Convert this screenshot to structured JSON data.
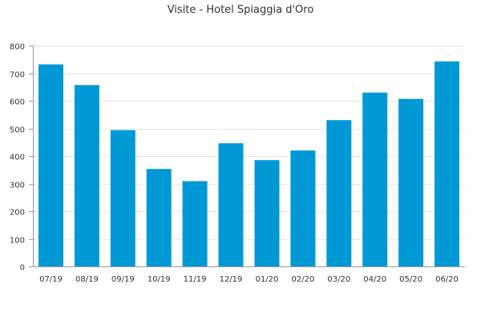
{
  "chart_data": {
    "type": "bar",
    "title": "Visite - Hotel Spiaggia d'Oro",
    "xlabel": "",
    "ylabel": "",
    "categories": [
      "07/19",
      "08/19",
      "09/19",
      "10/19",
      "11/19",
      "12/19",
      "01/20",
      "02/20",
      "03/20",
      "04/20",
      "05/20",
      "06/20"
    ],
    "values": [
      732,
      657,
      494,
      353,
      309,
      446,
      385,
      420,
      530,
      630,
      607,
      743
    ],
    "ylim": [
      0,
      800
    ],
    "yticks": [
      0,
      100,
      200,
      300,
      400,
      500,
      600,
      700,
      800
    ],
    "grid": true,
    "legend": "none",
    "bar_color": "#0099d6"
  }
}
